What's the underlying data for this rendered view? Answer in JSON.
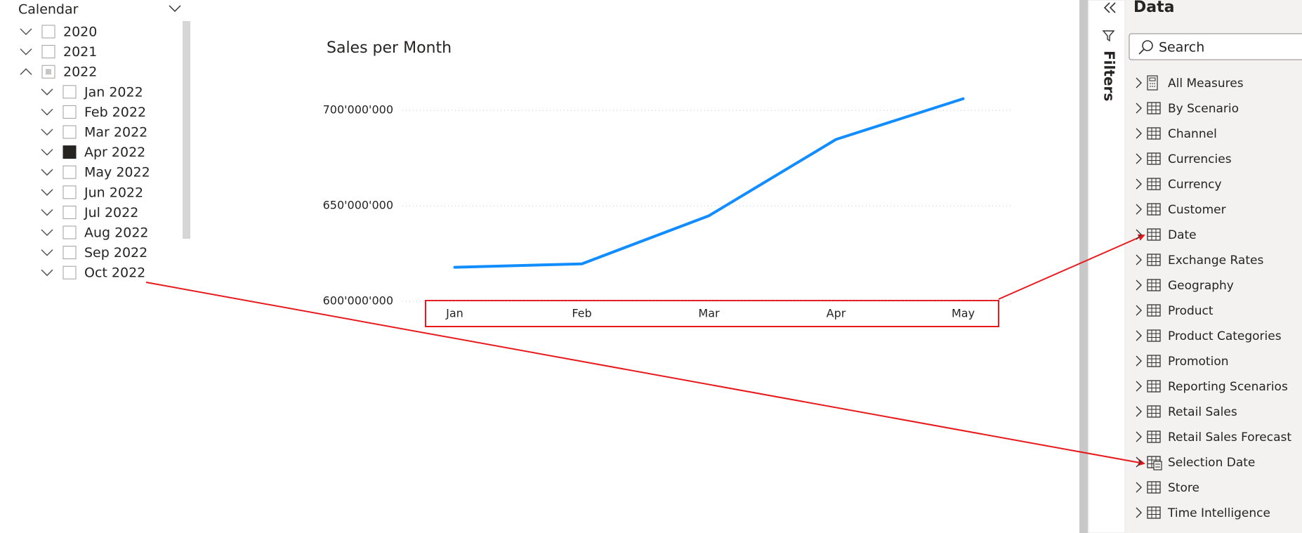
{
  "slicer": {
    "title": "Calendar",
    "items": [
      {
        "label": "2020",
        "level": 0,
        "expanded": false,
        "state": "none"
      },
      {
        "label": "2021",
        "level": 0,
        "expanded": false,
        "state": "none"
      },
      {
        "label": "2022",
        "level": 0,
        "expanded": true,
        "state": "partial"
      },
      {
        "label": "Jan 2022",
        "level": 1,
        "expanded": false,
        "state": "none"
      },
      {
        "label": "Feb 2022",
        "level": 1,
        "expanded": false,
        "state": "none"
      },
      {
        "label": "Mar 2022",
        "level": 1,
        "expanded": false,
        "state": "none"
      },
      {
        "label": "Apr 2022",
        "level": 1,
        "expanded": false,
        "state": "checked"
      },
      {
        "label": "May 2022",
        "level": 1,
        "expanded": false,
        "state": "none"
      },
      {
        "label": "Jun 2022",
        "level": 1,
        "expanded": false,
        "state": "none"
      },
      {
        "label": "Jul 2022",
        "level": 1,
        "expanded": false,
        "state": "none"
      },
      {
        "label": "Aug 2022",
        "level": 1,
        "expanded": false,
        "state": "none"
      },
      {
        "label": "Sep 2022",
        "level": 1,
        "expanded": false,
        "state": "none"
      },
      {
        "label": "Oct 2022",
        "level": 1,
        "expanded": false,
        "state": "none"
      }
    ]
  },
  "chart_data": {
    "type": "line",
    "title": "Sales per Month",
    "categories": [
      "Jan",
      "Feb",
      "Mar",
      "Apr",
      "May"
    ],
    "values": [
      617800000,
      619600000,
      644800000,
      684800000,
      706100000
    ],
    "color": "#118dff",
    "ylim": [
      600000000,
      710000000
    ],
    "yticks": [
      {
        "value": 600000000,
        "label": "600'000'000"
      },
      {
        "value": 650000000,
        "label": "650'000'000"
      },
      {
        "value": 700000000,
        "label": "700'000'000"
      }
    ],
    "grid": true
  },
  "filters_pane": {
    "title": "Filters"
  },
  "data_pane": {
    "title": "Data",
    "search_placeholder": "Search",
    "items": [
      {
        "label": "All Measures",
        "icon": "measures"
      },
      {
        "label": "By Scenario",
        "icon": "table"
      },
      {
        "label": "Channel",
        "icon": "table"
      },
      {
        "label": "Currencies",
        "icon": "table"
      },
      {
        "label": "Currency",
        "icon": "table"
      },
      {
        "label": "Customer",
        "icon": "table"
      },
      {
        "label": "Date",
        "icon": "table"
      },
      {
        "label": "Exchange Rates",
        "icon": "table"
      },
      {
        "label": "Geography",
        "icon": "table"
      },
      {
        "label": "Product",
        "icon": "table"
      },
      {
        "label": "Product Categories",
        "icon": "table"
      },
      {
        "label": "Promotion",
        "icon": "table"
      },
      {
        "label": "Reporting Scenarios",
        "icon": "table"
      },
      {
        "label": "Retail Sales",
        "icon": "table"
      },
      {
        "label": "Retail Sales Forecast",
        "icon": "table"
      },
      {
        "label": "Selection Date",
        "icon": "calculated"
      },
      {
        "label": "Store",
        "icon": "table"
      },
      {
        "label": "Time Intelligence",
        "icon": "table"
      }
    ]
  }
}
